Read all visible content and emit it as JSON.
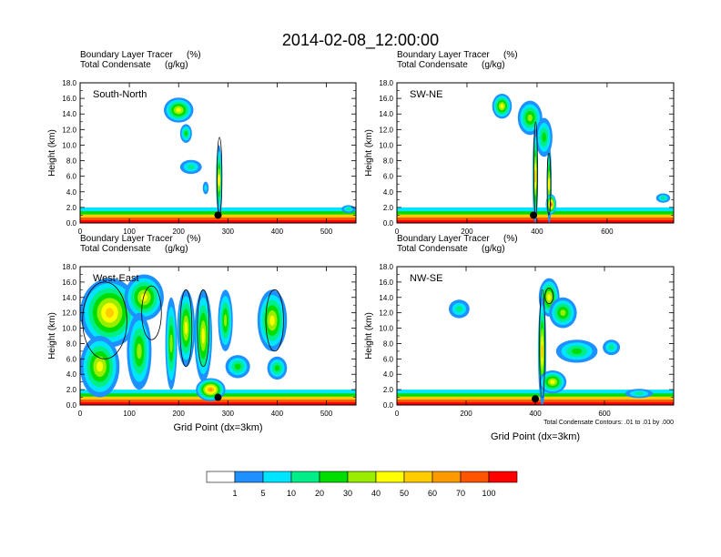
{
  "title": "2014-02-08_12:00:00",
  "panels": [
    {
      "label": "South-North",
      "field1": "Boundary Layer Tracer",
      "field1_units": "(%)",
      "field2": "Total Condensate",
      "field2_units": "(g/kg)",
      "ylabel": "Height (km)",
      "xlabel": "",
      "xlim": [
        0,
        560
      ],
      "ylim": [
        0,
        18
      ],
      "yticks": [
        "0.0",
        "2.0",
        "4.0",
        "6.0",
        "8.0",
        "10.0",
        "12.0",
        "14.0",
        "16.0",
        "18.0"
      ],
      "xticks": [
        {
          "v": 0,
          "t": "0"
        },
        {
          "v": 100,
          "t": "100"
        },
        {
          "v": 200,
          "t": "200"
        },
        {
          "v": 300,
          "t": "300"
        },
        {
          "v": 400,
          "t": "400"
        },
        {
          "v": 500,
          "t": "500"
        }
      ],
      "marker": {
        "x": 280,
        "y": 1.0
      },
      "blobs": [
        {
          "x": 200,
          "y": 14.5,
          "rx": 30,
          "ry": 1.6,
          "lv": 5
        },
        {
          "x": 215,
          "y": 11.5,
          "rx": 12,
          "ry": 1.2,
          "lv": 3
        },
        {
          "x": 225,
          "y": 7.2,
          "rx": 22,
          "ry": 0.9,
          "lv": 2
        },
        {
          "x": 255,
          "y": 4.5,
          "rx": 6,
          "ry": 0.8,
          "lv": 1
        },
        {
          "x": 282,
          "y": 5.5,
          "rx": 6,
          "ry": 4.5,
          "lv": 5
        },
        {
          "x": 545,
          "y": 1.8,
          "rx": 14,
          "ry": 0.5,
          "lv": 2
        }
      ],
      "contours": [
        {
          "x": 283,
          "y": 6,
          "rx": 5,
          "ry": 5
        }
      ]
    },
    {
      "label": "SW-NE",
      "field1": "Boundary Layer Tracer",
      "field1_units": "(%)",
      "field2": "Total Condensate",
      "field2_units": "(g/kg)",
      "ylabel": "Height (km)",
      "xlabel": "",
      "xlim": [
        0,
        790
      ],
      "ylim": [
        0,
        18
      ],
      "yticks": [
        "0.0",
        "2.0",
        "4.0",
        "6.0",
        "8.0",
        "10.0",
        "12.0",
        "14.0",
        "16.0",
        "18.0"
      ],
      "xticks": [
        {
          "v": 0,
          "t": "0"
        },
        {
          "v": 200,
          "t": "200"
        },
        {
          "v": 400,
          "t": "400"
        },
        {
          "v": 600,
          "t": "600"
        }
      ],
      "marker": {
        "x": 390,
        "y": 1.0
      },
      "blobs": [
        {
          "x": 300,
          "y": 15,
          "rx": 28,
          "ry": 1.6,
          "lv": 5
        },
        {
          "x": 380,
          "y": 13.5,
          "rx": 35,
          "ry": 2.2,
          "lv": 4
        },
        {
          "x": 420,
          "y": 11,
          "rx": 24,
          "ry": 2.5,
          "lv": 3
        },
        {
          "x": 395,
          "y": 6,
          "rx": 8,
          "ry": 6,
          "lv": 6
        },
        {
          "x": 435,
          "y": 5,
          "rx": 7,
          "ry": 5,
          "lv": 5
        },
        {
          "x": 440,
          "y": 2.4,
          "rx": 15,
          "ry": 1.3,
          "lv": 8
        },
        {
          "x": 760,
          "y": 3.2,
          "rx": 20,
          "ry": 0.6,
          "lv": 2
        }
      ],
      "contours": [
        {
          "x": 396,
          "y": 7,
          "rx": 5,
          "ry": 6
        },
        {
          "x": 434,
          "y": 5,
          "rx": 5,
          "ry": 4
        }
      ]
    },
    {
      "label": "West-East",
      "field1": "Boundary Layer Tracer",
      "field1_units": "(%)",
      "field2": "Total Condensate",
      "field2_units": "(g/kg)",
      "ylabel": "Height (km)",
      "xlabel": "Grid Point (dx=3km)",
      "xlim": [
        0,
        560
      ],
      "ylim": [
        0,
        18
      ],
      "yticks": [
        "0.0",
        "2.0",
        "4.0",
        "6.0",
        "8.0",
        "10.0",
        "12.0",
        "14.0",
        "16.0",
        "18.0"
      ],
      "xticks": [
        {
          "v": 0,
          "t": "0"
        },
        {
          "v": 100,
          "t": "100"
        },
        {
          "v": 200,
          "t": "200"
        },
        {
          "v": 300,
          "t": "300"
        },
        {
          "v": 400,
          "t": "400"
        },
        {
          "v": 500,
          "t": "500"
        }
      ],
      "marker": {
        "x": 280,
        "y": 1.0
      },
      "blobs": [
        {
          "x": 60,
          "y": 12,
          "rx": 60,
          "ry": 4.5,
          "lv": 6
        },
        {
          "x": 130,
          "y": 14,
          "rx": 40,
          "ry": 3,
          "lv": 5
        },
        {
          "x": 40,
          "y": 5,
          "rx": 40,
          "ry": 4,
          "lv": 5
        },
        {
          "x": 120,
          "y": 7,
          "rx": 25,
          "ry": 5,
          "lv": 4
        },
        {
          "x": 185,
          "y": 8,
          "rx": 12,
          "ry": 6,
          "lv": 4
        },
        {
          "x": 215,
          "y": 10,
          "rx": 18,
          "ry": 5,
          "lv": 5
        },
        {
          "x": 250,
          "y": 9,
          "rx": 18,
          "ry": 6,
          "lv": 5
        },
        {
          "x": 295,
          "y": 11,
          "rx": 15,
          "ry": 4,
          "lv": 4
        },
        {
          "x": 320,
          "y": 5,
          "rx": 25,
          "ry": 1.5,
          "lv": 3
        },
        {
          "x": 390,
          "y": 11,
          "rx": 30,
          "ry": 4,
          "lv": 5
        },
        {
          "x": 400,
          "y": 4.8,
          "rx": 20,
          "ry": 1.5,
          "lv": 3
        },
        {
          "x": 265,
          "y": 2,
          "rx": 30,
          "ry": 1.5,
          "lv": 7
        }
      ],
      "contours": [
        {
          "x": 50,
          "y": 11,
          "rx": 45,
          "ry": 5
        },
        {
          "x": 145,
          "y": 12,
          "rx": 20,
          "ry": 3.5
        },
        {
          "x": 215,
          "y": 10,
          "rx": 12,
          "ry": 5
        },
        {
          "x": 250,
          "y": 10,
          "rx": 12,
          "ry": 5
        },
        {
          "x": 395,
          "y": 11,
          "rx": 18,
          "ry": 4
        }
      ]
    },
    {
      "label": "NW-SE",
      "field1": "Boundary Layer Tracer",
      "field1_units": "(%)",
      "field2": "Total Condensate",
      "field2_units": "(g/kg)",
      "ylabel": "Height (km)",
      "xlabel": "Grid Point (dx=3km)",
      "xlim": [
        0,
        800
      ],
      "ylim": [
        0,
        18
      ],
      "yticks": [
        "0.0",
        "2.0",
        "4.0",
        "6.0",
        "8.0",
        "10.0",
        "12.0",
        "14.0",
        "16.0",
        "18.0"
      ],
      "xticks": [
        {
          "v": 0,
          "t": "0"
        },
        {
          "v": 200,
          "t": "200"
        },
        {
          "v": 400,
          "t": "400"
        },
        {
          "v": 600,
          "t": "600"
        }
      ],
      "marker": {
        "x": 400,
        "y": 0.8
      },
      "blobs": [
        {
          "x": 440,
          "y": 14,
          "rx": 30,
          "ry": 2.5,
          "lv": 5
        },
        {
          "x": 480,
          "y": 12,
          "rx": 40,
          "ry": 2,
          "lv": 4
        },
        {
          "x": 180,
          "y": 12.5,
          "rx": 30,
          "ry": 1.2,
          "lv": 2
        },
        {
          "x": 420,
          "y": 7,
          "rx": 12,
          "ry": 7,
          "lv": 6
        },
        {
          "x": 520,
          "y": 7,
          "rx": 60,
          "ry": 1.5,
          "lv": 3
        },
        {
          "x": 620,
          "y": 7.5,
          "rx": 25,
          "ry": 1,
          "lv": 2
        },
        {
          "x": 450,
          "y": 3,
          "rx": 40,
          "ry": 1.5,
          "lv": 5
        },
        {
          "x": 700,
          "y": 1.5,
          "rx": 40,
          "ry": 0.6,
          "lv": 2
        }
      ],
      "contours": [
        {
          "x": 420,
          "y": 8,
          "rx": 8,
          "ry": 7
        },
        {
          "x": 440,
          "y": 14.2,
          "rx": 12,
          "ry": 1
        }
      ],
      "note": "Total Condensate Contours: .01 to .01 by .000"
    }
  ],
  "colorbar": {
    "labels": [
      "1",
      "5",
      "10",
      "20",
      "30",
      "40",
      "50",
      "60",
      "70",
      "100"
    ],
    "colors": [
      "#ffffff",
      "#1e90ff",
      "#00e5ff",
      "#00ee88",
      "#00dd00",
      "#99ee00",
      "#ffff00",
      "#ffcc00",
      "#ff9900",
      "#ff5500",
      "#ff0000"
    ]
  },
  "chart_data": [
    {
      "type": "heatmap",
      "title": "South-North",
      "series_description": "Boundary Layer Tracer (%) with Total Condensate (g/kg) contours",
      "xlabel": "",
      "ylabel": "Height (km)",
      "xlim": [
        0,
        560
      ],
      "ylim": [
        0,
        18
      ],
      "levels": [
        1,
        5,
        10,
        20,
        30,
        40,
        50,
        60,
        70,
        100
      ]
    },
    {
      "type": "heatmap",
      "title": "SW-NE",
      "xlabel": "",
      "ylabel": "Height (km)",
      "xlim": [
        0,
        790
      ],
      "ylim": [
        0,
        18
      ],
      "levels": [
        1,
        5,
        10,
        20,
        30,
        40,
        50,
        60,
        70,
        100
      ]
    },
    {
      "type": "heatmap",
      "title": "West-East",
      "xlabel": "Grid Point (dx=3km)",
      "ylabel": "Height (km)",
      "xlim": [
        0,
        560
      ],
      "ylim": [
        0,
        18
      ],
      "levels": [
        1,
        5,
        10,
        20,
        30,
        40,
        50,
        60,
        70,
        100
      ]
    },
    {
      "type": "heatmap",
      "title": "NW-SE",
      "xlabel": "Grid Point (dx=3km)",
      "ylabel": "Height (km)",
      "xlim": [
        0,
        800
      ],
      "ylim": [
        0,
        18
      ],
      "levels": [
        1,
        5,
        10,
        20,
        30,
        40,
        50,
        60,
        70,
        100
      ]
    }
  ]
}
